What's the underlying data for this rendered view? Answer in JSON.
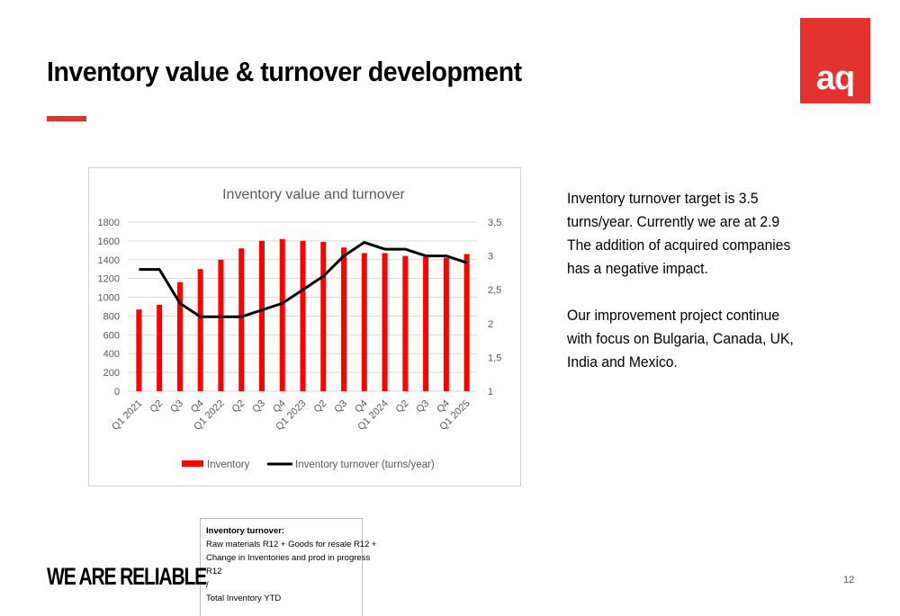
{
  "slide": {
    "title": "Inventory value & turnover development",
    "logo_text": "aq",
    "tagline": "WE ARE RELIABLE",
    "page_number": "12",
    "accent_color": "#E3312D"
  },
  "side_text": {
    "para1": "Inventory turnover target is 3.5\nturns/year. Currently we are at 2.9\nThe addition of acquired companies\nhas a negative impact.",
    "para2": "Our improvement project continue\nwith focus on Bulgaria, Canada, UK,\nIndia and Mexico."
  },
  "formula_box": {
    "title": "Inventory turnover:",
    "line1": "Raw materials R12 + Goods for resale R12 +",
    "line2": "Change in Inventories and  prod in progress",
    "line3": "R12",
    "line4": "/",
    "line5": "Total Inventory YTD"
  },
  "chart_data": {
    "type": "bar",
    "title": "Inventory value and turnover",
    "categories": [
      "Q1 2021",
      "Q2",
      "Q3",
      "Q4",
      "Q1 2022",
      "Q2",
      "Q3",
      "Q4",
      "Q1 2023",
      "Q2",
      "Q3",
      "Q4",
      "Q1 2024",
      "Q2",
      "Q3",
      "Q4",
      "Q1 2025"
    ],
    "series": [
      {
        "name": "Inventory",
        "kind": "bar",
        "axis": "left",
        "color": "#FF0000",
        "values": [
          870,
          920,
          1160,
          1300,
          1400,
          1520,
          1600,
          1620,
          1600,
          1590,
          1530,
          1470,
          1470,
          1440,
          1430,
          1420,
          1460
        ]
      },
      {
        "name": "Inventory turnover (turns/year)",
        "kind": "line",
        "axis": "right",
        "color": "#000000",
        "values": [
          2.8,
          2.8,
          2.3,
          2.1,
          2.1,
          2.1,
          2.2,
          2.3,
          2.5,
          2.7,
          3.0,
          3.2,
          3.1,
          3.1,
          3.0,
          3.0,
          2.9
        ]
      }
    ],
    "y_left": {
      "min": 0,
      "max": 1800,
      "ticks": [
        "0",
        "200",
        "400",
        "600",
        "800",
        "1000",
        "1200",
        "1400",
        "1600",
        "1800"
      ]
    },
    "y_right": {
      "min": 1,
      "max": 3.5,
      "ticks": [
        "1",
        "1,5",
        "2",
        "2,5",
        "3",
        "3,5"
      ]
    },
    "grid": true,
    "legend_position": "bottom"
  }
}
